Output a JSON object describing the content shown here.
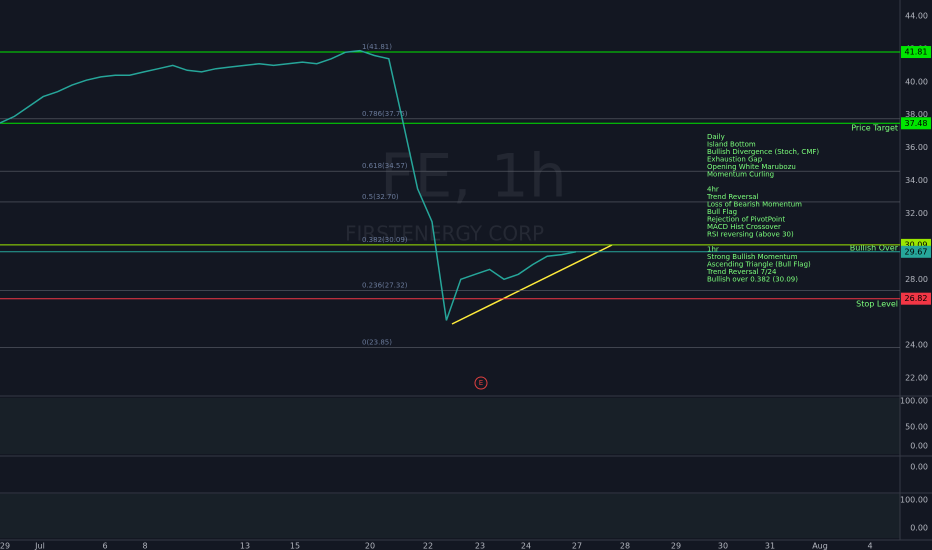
{
  "chart_data": {
    "type": "line",
    "watermark": "FE, 1h",
    "company": "FIRSTENERGY CORP",
    "earnings_marker": "E",
    "ylim": [
      22,
      44
    ],
    "yticks": [
      {
        "value": 44,
        "label": "44.00"
      },
      {
        "value": 42,
        "label": "42.00"
      },
      {
        "value": 40,
        "label": "40.00"
      },
      {
        "value": 38,
        "label": "38.00"
      },
      {
        "value": 36,
        "label": "36.00"
      },
      {
        "value": 34,
        "label": "34.00"
      },
      {
        "value": 32,
        "label": "32.00"
      },
      {
        "value": 28,
        "label": "28.00"
      },
      {
        "value": 24,
        "label": "24.00"
      },
      {
        "value": 22,
        "label": "22.00"
      }
    ],
    "x_labels": [
      "29",
      "Jul",
      "6",
      "8",
      "13",
      "15",
      "20",
      "22",
      "23",
      "24",
      "27",
      "28",
      "29",
      "30",
      "31",
      "Aug",
      "4"
    ],
    "series": [
      {
        "name": "FE",
        "color": "#26a69a",
        "values": [
          37.5,
          37.9,
          38.5,
          39.1,
          39.4,
          39.8,
          40.1,
          40.3,
          40.4,
          40.4,
          40.6,
          40.8,
          41.0,
          40.7,
          40.6,
          40.8,
          40.9,
          41.0,
          41.1,
          41.0,
          41.1,
          41.2,
          41.1,
          41.4,
          41.8,
          41.9,
          41.6,
          41.4,
          37.5,
          33.5,
          31.5,
          25.5,
          28.0,
          28.3,
          28.6,
          28.0,
          28.3,
          28.9,
          29.4,
          29.5,
          29.67
        ]
      }
    ],
    "levels": [
      {
        "value": 41.81,
        "color": "#00e600"
      },
      {
        "value": 37.48,
        "color": "#00e600"
      },
      {
        "value": 30.09,
        "color": "#9be600"
      },
      {
        "value": 29.67,
        "color": "#26a69a"
      },
      {
        "value": 26.82,
        "color": "#f23645"
      }
    ],
    "fib": [
      {
        "value": 41.81,
        "label": "1(41.81)"
      },
      {
        "value": 37.75,
        "label": "0.786(37.75)"
      },
      {
        "value": 34.57,
        "label": "0.618(34.57)"
      },
      {
        "value": 32.7,
        "label": "0.5(32.70)"
      },
      {
        "value": 30.09,
        "label": "0.382(30.09)"
      },
      {
        "value": 27.32,
        "label": "0.236(27.32)"
      },
      {
        "value": 23.85,
        "label": "0(23.85)"
      }
    ],
    "annotations": [
      "Price Target",
      "Bullish Over",
      "Stop Level"
    ],
    "notes": [
      [
        "Daily",
        "Island Bottom",
        "Bullish Divergence (Stoch, CMF)",
        "Exhaustion Gap",
        "Opening White Marubozu",
        "Momentum Curling"
      ],
      [
        "4hr",
        "Trend Reversal",
        "Loss of Bearish Momentum",
        "Bull Flag",
        "Rejection of PivotPoint",
        "MACD Hist Crossover",
        "RSI reversing (above 30)"
      ],
      [
        "1hr",
        "Strong Bullish Momentum",
        "Ascending Triangle (Bull Flag)",
        "Trend Reversal 7/24",
        "Bullish over 0.382 (30.09)"
      ]
    ],
    "panel_ticks": [
      [
        "100.00",
        "50.00",
        "0.00"
      ],
      [
        "0.00"
      ],
      [
        "100.00",
        "0.00"
      ]
    ]
  }
}
